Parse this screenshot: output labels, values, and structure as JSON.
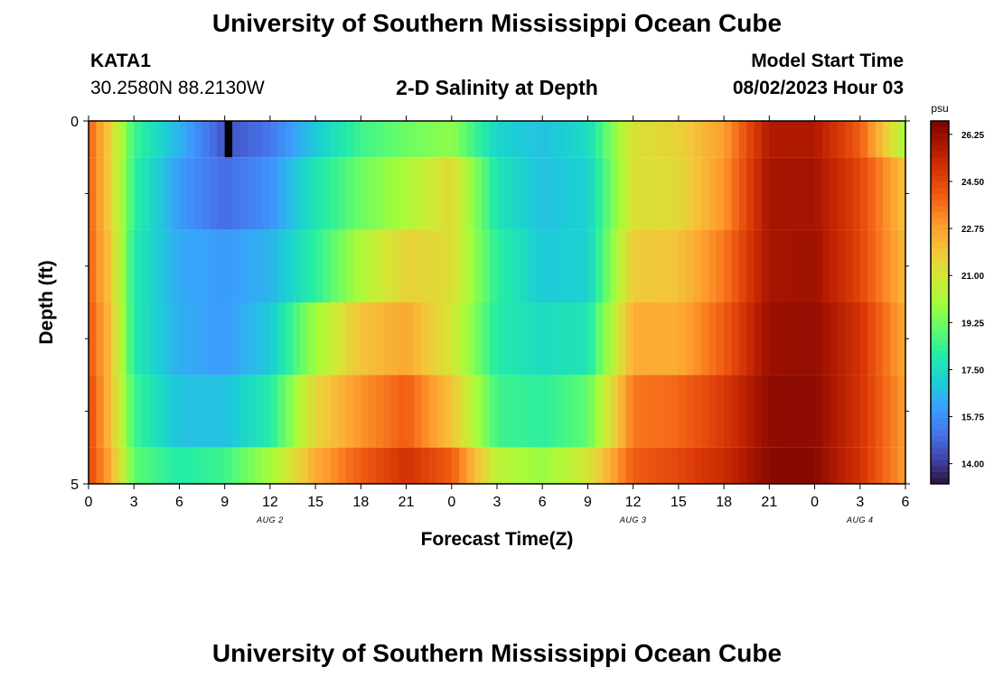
{
  "page": {
    "title": "University of Southern Mississippi Ocean Cube",
    "station_id": "KATA1",
    "coordinates": "30.2580N  88.2130W",
    "subtitle": "2-D Salinity at Depth",
    "model_start_label": "Model Start Time",
    "model_start_value": "08/02/2023 Hour 03",
    "footer_title": "University of Southern Mississippi Ocean Cube"
  },
  "chart_data": {
    "type": "heatmap",
    "xlabel": "Forecast Time(Z)",
    "ylabel": "Depth (ft)",
    "x_unit": "hour of forecast (0 = Aug 2 00Z)",
    "xlim": [
      0,
      54
    ],
    "ylim": [
      0,
      5
    ],
    "x_ticks": [
      {
        "hour": 0,
        "label": "0"
      },
      {
        "hour": 3,
        "label": "3"
      },
      {
        "hour": 6,
        "label": "6"
      },
      {
        "hour": 9,
        "label": "9"
      },
      {
        "hour": 12,
        "label": "12"
      },
      {
        "hour": 15,
        "label": "15"
      },
      {
        "hour": 18,
        "label": "18"
      },
      {
        "hour": 21,
        "label": "21"
      },
      {
        "hour": 24,
        "label": "0"
      },
      {
        "hour": 27,
        "label": "3"
      },
      {
        "hour": 30,
        "label": "6"
      },
      {
        "hour": 33,
        "label": "9"
      },
      {
        "hour": 36,
        "label": "12"
      },
      {
        "hour": 39,
        "label": "15"
      },
      {
        "hour": 42,
        "label": "18"
      },
      {
        "hour": 45,
        "label": "21"
      },
      {
        "hour": 48,
        "label": "0"
      },
      {
        "hour": 51,
        "label": "3"
      },
      {
        "hour": 54,
        "label": "6"
      }
    ],
    "date_labels": [
      {
        "hour": 12,
        "label": "AUG 2"
      },
      {
        "hour": 36,
        "label": "AUG 3"
      },
      {
        "hour": 51,
        "label": "AUG 4"
      }
    ],
    "y_ticks": [
      {
        "depth": 0,
        "label": "0"
      },
      {
        "depth": 5,
        "label": "5"
      }
    ],
    "y_minor_ticks": [
      1,
      2,
      3,
      4
    ],
    "colorbar": {
      "unit": "psu",
      "min": 13.25,
      "max": 26.75,
      "tick_values": [
        14.0,
        15.75,
        17.5,
        19.25,
        21.0,
        22.75,
        24.5,
        26.25
      ],
      "tick_labels": [
        "14.00",
        "15.75",
        "17.50",
        "19.25",
        "21.00",
        "22.75",
        "24.50",
        "26.25"
      ]
    },
    "depth_layers": [
      {
        "top": 0.0,
        "bottom": 0.5
      },
      {
        "top": 0.5,
        "bottom": 1.5
      },
      {
        "top": 1.5,
        "bottom": 2.5
      },
      {
        "top": 2.5,
        "bottom": 3.5
      },
      {
        "top": 3.5,
        "bottom": 4.5
      },
      {
        "top": 4.5,
        "bottom": 5.0
      }
    ],
    "time_keyframes": {
      "hours": [
        0,
        1.5,
        3,
        6,
        9,
        12,
        15,
        18,
        21,
        24,
        27,
        30,
        33,
        36,
        39,
        42,
        45,
        48,
        51,
        54
      ],
      "layers": [
        {
          "top": 0.0,
          "bottom": 0.5,
          "salinity": [
            24.0,
            21.5,
            18.5,
            16.5,
            14.5,
            15.2,
            17.0,
            18.5,
            19.2,
            19.7,
            17.3,
            16.8,
            17.5,
            21.2,
            21.6,
            22.8,
            25.8,
            25.8,
            24.0,
            20.0
          ]
        },
        {
          "top": 0.5,
          "bottom": 1.5,
          "salinity": [
            24.0,
            21.5,
            18.3,
            16.0,
            15.0,
            15.8,
            17.8,
            19.2,
            20.2,
            21.4,
            17.8,
            16.8,
            17.2,
            21.2,
            21.4,
            23.0,
            26.0,
            26.0,
            24.5,
            22.0
          ]
        },
        {
          "top": 1.5,
          "bottom": 2.5,
          "salinity": [
            24.0,
            21.8,
            18.0,
            16.3,
            16.0,
            16.5,
            18.2,
            20.2,
            21.6,
            21.3,
            18.2,
            17.0,
            17.2,
            21.8,
            22.0,
            23.5,
            26.0,
            26.1,
            24.5,
            22.2
          ]
        },
        {
          "top": 2.5,
          "bottom": 3.5,
          "salinity": [
            24.2,
            22.0,
            18.0,
            16.4,
            16.0,
            17.0,
            20.0,
            22.0,
            22.6,
            21.0,
            18.0,
            17.5,
            17.8,
            22.5,
            22.5,
            24.0,
            26.2,
            26.3,
            25.0,
            22.5
          ]
        },
        {
          "top": 3.5,
          "bottom": 4.5,
          "salinity": [
            24.5,
            22.0,
            18.5,
            16.8,
            16.8,
            18.0,
            21.5,
            23.0,
            24.0,
            22.0,
            18.5,
            18.2,
            19.0,
            23.5,
            23.8,
            24.8,
            26.4,
            26.4,
            25.0,
            22.8
          ]
        },
        {
          "top": 4.5,
          "bottom": 5.0,
          "salinity": [
            24.5,
            22.5,
            19.0,
            18.0,
            18.5,
            20.0,
            22.5,
            24.0,
            25.0,
            24.0,
            20.5,
            19.8,
            21.0,
            24.0,
            24.5,
            25.2,
            26.5,
            26.5,
            25.0,
            22.8
          ]
        }
      ]
    },
    "masked_cell": {
      "hour_start": 9.0,
      "hour_end": 9.5,
      "depth_top": 0.0,
      "depth_bottom": 0.5,
      "color": "#000000"
    },
    "colormap": [
      "#30123b",
      "#4145ab",
      "#4675ed",
      "#39a2fc",
      "#1bcfd4",
      "#24eca6",
      "#61fc6c",
      "#a4fc3b",
      "#d1e834",
      "#f3c63a",
      "#fe9b2d",
      "#f36315",
      "#d93806",
      "#b11901",
      "#7a0402"
    ]
  }
}
